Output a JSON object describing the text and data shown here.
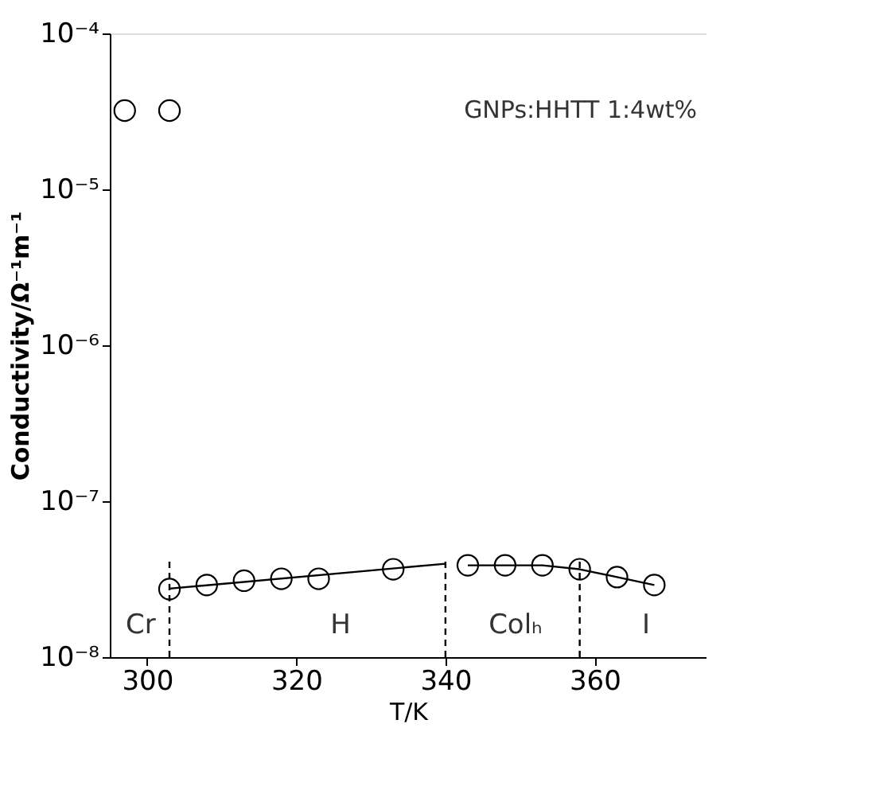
{
  "chart_data": {
    "type": "scatter",
    "xlabel": "T/K",
    "ylabel": "Conductivity/Ω⁻¹m⁻¹",
    "xlim": [
      295,
      375
    ],
    "xticks": [
      300,
      320,
      340,
      360
    ],
    "ylim": [
      1e-08,
      0.0001
    ],
    "log": true,
    "yticks": [
      {
        "value": 1e-08,
        "label": "10⁻⁸"
      },
      {
        "value": 1e-07,
        "label": "10⁻⁷"
      },
      {
        "value": 1e-06,
        "label": "10⁻⁶"
      },
      {
        "value": 1e-05,
        "label": "10⁻⁵"
      },
      {
        "value": 0.0001,
        "label": "10⁻⁴"
      }
    ],
    "grid": false,
    "series": [
      {
        "marker": "circle",
        "color": "#000000",
        "x": [
          297,
          303
        ],
        "values": [
          3.2e-05,
          3.2e-05
        ]
      },
      {
        "marker": "circle",
        "color": "#000000",
        "x": [
          303,
          308,
          313,
          318,
          323,
          333
        ],
        "values": [
          2.73e-08,
          2.9e-08,
          3.09e-08,
          3.18e-08,
          3.18e-08,
          3.66e-08
        ]
      },
      {
        "type": "line",
        "marker": "none",
        "line_style": "solid",
        "color": "#000000",
        "x": [
          303,
          340
        ],
        "values": [
          2.75e-08,
          3.97e-08
        ]
      },
      {
        "type": "line",
        "marker": "circle",
        "line_style": "solid",
        "color": "#000000",
        "x": [
          343,
          348,
          353,
          358,
          363,
          368
        ],
        "values": [
          3.88e-08,
          3.88e-08,
          3.88e-08,
          3.66e-08,
          3.26e-08,
          2.9e-08
        ]
      },
      {
        "type": "line",
        "marker": "none",
        "line_style": "dashed",
        "color": "#000000",
        "x": [
          303,
          303
        ],
        "values": [
          1e-08,
          4.2e-08
        ]
      },
      {
        "type": "line",
        "marker": "none",
        "line_style": "dashed",
        "color": "#000000",
        "x": [
          340,
          340
        ],
        "values": [
          1e-08,
          4.2e-08
        ]
      },
      {
        "type": "line",
        "marker": "none",
        "line_style": "dashed",
        "color": "#000000",
        "x": [
          358,
          358
        ],
        "values": [
          1e-08,
          4.2e-08
        ]
      }
    ],
    "annotations": [
      "GNPs:HHTT 1:4wt%",
      "Cr",
      "H",
      "Colₕ",
      "I"
    ]
  }
}
